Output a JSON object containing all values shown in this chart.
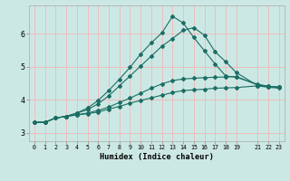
{
  "xlabel": "Humidex (Indice chaleur)",
  "bg_color": "#cce8e4",
  "grid_color": "#f0b8b8",
  "line_color": "#1a6e64",
  "xlim": [
    -0.5,
    23.5
  ],
  "ylim": [
    2.75,
    6.85
  ],
  "xticks": [
    0,
    1,
    2,
    3,
    4,
    5,
    6,
    7,
    8,
    9,
    10,
    11,
    12,
    13,
    14,
    15,
    16,
    17,
    18,
    19,
    21,
    22,
    23
  ],
  "yticks": [
    3,
    4,
    5,
    6
  ],
  "line1_x": [
    0,
    1,
    2,
    3,
    4,
    5,
    6,
    7,
    8,
    9,
    10,
    11,
    12,
    13,
    14,
    15,
    16,
    17,
    18,
    19,
    21,
    22,
    23
  ],
  "line1_y": [
    3.32,
    3.32,
    3.45,
    3.5,
    3.54,
    3.58,
    3.63,
    3.72,
    3.8,
    3.9,
    3.98,
    4.06,
    4.14,
    4.22,
    4.28,
    4.3,
    4.32,
    4.35,
    4.36,
    4.37,
    4.42,
    4.38,
    4.35
  ],
  "line2_x": [
    0,
    1,
    2,
    3,
    4,
    5,
    6,
    7,
    8,
    9,
    10,
    11,
    12,
    13,
    14,
    15,
    16,
    17,
    18,
    19,
    21,
    22,
    23
  ],
  "line2_y": [
    3.32,
    3.32,
    3.45,
    3.5,
    3.55,
    3.6,
    3.68,
    3.78,
    3.92,
    4.05,
    4.2,
    4.35,
    4.48,
    4.58,
    4.63,
    4.65,
    4.67,
    4.68,
    4.69,
    4.7,
    4.45,
    4.41,
    4.38
  ],
  "line3_x": [
    0,
    1,
    2,
    3,
    4,
    5,
    6,
    7,
    8,
    9,
    10,
    11,
    12,
    13,
    14,
    15,
    16,
    17,
    18,
    19,
    21,
    22,
    23
  ],
  "line3_y": [
    3.32,
    3.32,
    3.45,
    3.5,
    3.6,
    3.7,
    3.88,
    4.12,
    4.42,
    4.72,
    5.02,
    5.32,
    5.62,
    5.85,
    6.1,
    6.18,
    5.95,
    5.45,
    5.15,
    4.82,
    4.43,
    4.4,
    4.38
  ],
  "line4_x": [
    0,
    1,
    2,
    3,
    4,
    5,
    6,
    7,
    8,
    9,
    10,
    11,
    12,
    13,
    14,
    15,
    16,
    17,
    18,
    19,
    21,
    22,
    23
  ],
  "line4_y": [
    3.32,
    3.32,
    3.45,
    3.5,
    3.6,
    3.75,
    3.98,
    4.28,
    4.62,
    4.98,
    5.38,
    5.72,
    6.02,
    6.52,
    6.32,
    5.88,
    5.48,
    5.08,
    4.72,
    4.68,
    4.47,
    4.41,
    4.38
  ]
}
